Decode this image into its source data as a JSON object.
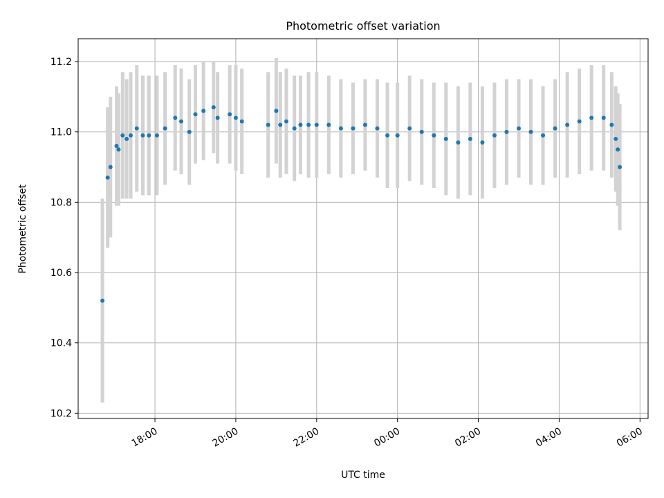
{
  "chart_data": {
    "type": "scatter",
    "title": "Photometric offset variation",
    "xlabel": "UTC time",
    "ylabel": "Photometric offset",
    "x_unit": "hours",
    "xlim": [
      16.1,
      30.2
    ],
    "ylim": [
      10.185,
      11.265
    ],
    "x_ticks": [
      {
        "value": 18,
        "label": "18:00"
      },
      {
        "value": 20,
        "label": "20:00"
      },
      {
        "value": 22,
        "label": "22:00"
      },
      {
        "value": 24,
        "label": "00:00"
      },
      {
        "value": 26,
        "label": "02:00"
      },
      {
        "value": 28,
        "label": "04:00"
      },
      {
        "value": 30,
        "label": "06:00"
      }
    ],
    "y_ticks": [
      {
        "value": 10.2,
        "label": "10.2"
      },
      {
        "value": 10.4,
        "label": "10.4"
      },
      {
        "value": 10.6,
        "label": "10.6"
      },
      {
        "value": 10.8,
        "label": "10.8"
      },
      {
        "value": 11.0,
        "label": "11.0"
      },
      {
        "value": 11.2,
        "label": "11.2"
      }
    ],
    "grid": true,
    "colors": {
      "points": "#1f77b4",
      "errorbars": "#d3d3d3",
      "grid": "#b0b0b0"
    },
    "series": [
      {
        "values": [
          [
            16.7,
            10.52,
            0.29
          ],
          [
            16.83,
            10.87,
            0.2
          ],
          [
            16.9,
            10.9,
            0.2
          ],
          [
            17.05,
            10.96,
            0.17
          ],
          [
            17.1,
            10.95,
            0.16
          ],
          [
            17.2,
            10.99,
            0.18
          ],
          [
            17.3,
            10.98,
            0.17
          ],
          [
            17.4,
            10.99,
            0.18
          ],
          [
            17.55,
            11.01,
            0.18
          ],
          [
            17.7,
            10.99,
            0.17
          ],
          [
            17.85,
            10.99,
            0.17
          ],
          [
            18.05,
            10.99,
            0.17
          ],
          [
            18.25,
            11.01,
            0.16
          ],
          [
            18.5,
            11.04,
            0.15
          ],
          [
            18.65,
            11.03,
            0.15
          ],
          [
            18.85,
            11.0,
            0.15
          ],
          [
            19.0,
            11.05,
            0.14
          ],
          [
            19.2,
            11.06,
            0.14
          ],
          [
            19.45,
            11.07,
            0.13
          ],
          [
            19.55,
            11.04,
            0.13
          ],
          [
            19.85,
            11.05,
            0.14
          ],
          [
            20.0,
            11.04,
            0.15
          ],
          [
            20.15,
            11.03,
            0.15
          ],
          [
            20.8,
            11.02,
            0.15
          ],
          [
            21.0,
            11.06,
            0.15
          ],
          [
            21.1,
            11.02,
            0.15
          ],
          [
            21.25,
            11.03,
            0.15
          ],
          [
            21.45,
            11.01,
            0.15
          ],
          [
            21.6,
            11.02,
            0.14
          ],
          [
            21.8,
            11.02,
            0.15
          ],
          [
            22.0,
            11.02,
            0.15
          ],
          [
            22.3,
            11.02,
            0.14
          ],
          [
            22.6,
            11.01,
            0.14
          ],
          [
            22.9,
            11.01,
            0.13
          ],
          [
            23.2,
            11.02,
            0.13
          ],
          [
            23.5,
            11.01,
            0.14
          ],
          [
            23.75,
            10.99,
            0.15
          ],
          [
            24.0,
            10.99,
            0.15
          ],
          [
            24.3,
            11.01,
            0.15
          ],
          [
            24.6,
            11.0,
            0.15
          ],
          [
            24.9,
            10.99,
            0.15
          ],
          [
            25.2,
            10.98,
            0.16
          ],
          [
            25.5,
            10.97,
            0.16
          ],
          [
            25.8,
            10.98,
            0.16
          ],
          [
            26.1,
            10.97,
            0.16
          ],
          [
            26.4,
            10.99,
            0.15
          ],
          [
            26.7,
            11.0,
            0.15
          ],
          [
            27.0,
            11.01,
            0.14
          ],
          [
            27.3,
            11.0,
            0.15
          ],
          [
            27.6,
            10.99,
            0.14
          ],
          [
            27.9,
            11.01,
            0.14
          ],
          [
            28.2,
            11.02,
            0.15
          ],
          [
            28.5,
            11.03,
            0.15
          ],
          [
            28.8,
            11.04,
            0.15
          ],
          [
            29.1,
            11.04,
            0.15
          ],
          [
            29.3,
            11.02,
            0.15
          ],
          [
            29.4,
            10.98,
            0.15
          ],
          [
            29.45,
            10.95,
            0.16
          ],
          [
            29.5,
            10.9,
            0.18
          ]
        ]
      }
    ]
  }
}
